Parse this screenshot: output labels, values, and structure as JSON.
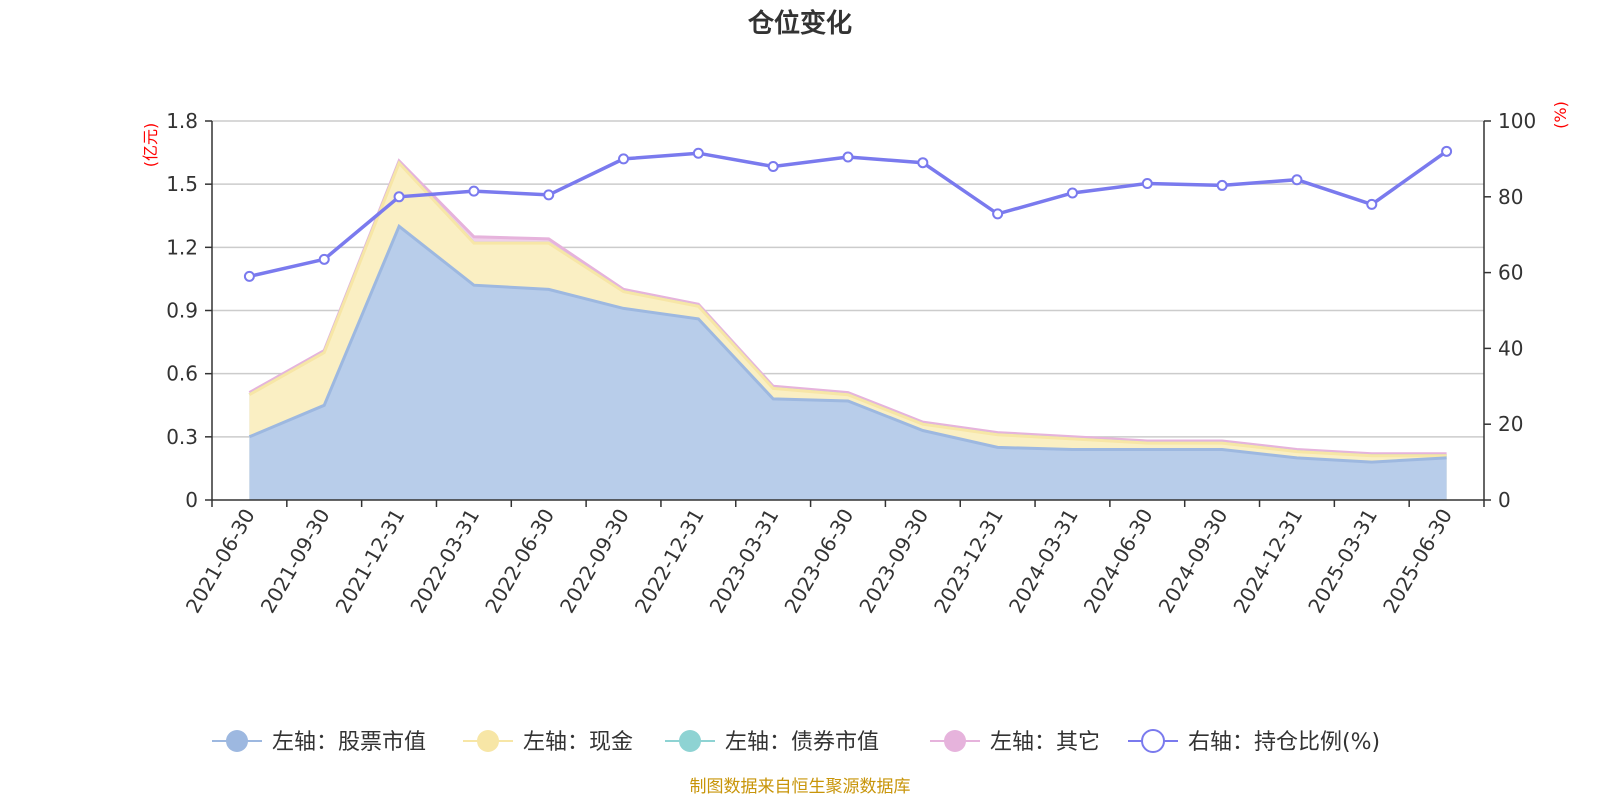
{
  "chart_data": {
    "type": "area",
    "title": "仓位变化",
    "left_unit": "(亿元)",
    "right_unit": "(%)",
    "categories": [
      "2021-06-30",
      "2021-09-30",
      "2021-12-31",
      "2022-03-31",
      "2022-06-30",
      "2022-09-30",
      "2022-12-31",
      "2023-03-31",
      "2023-06-30",
      "2023-09-30",
      "2023-12-31",
      "2024-03-31",
      "2024-06-30",
      "2024-09-30",
      "2024-12-31",
      "2025-03-31",
      "2025-06-30"
    ],
    "left_axis": {
      "min": 0,
      "max": 1.8,
      "ticks": [
        "0",
        "0.3",
        "0.6",
        "0.9",
        "1.2",
        "1.5",
        "1.8"
      ]
    },
    "right_axis": {
      "min": 0,
      "max": 100,
      "ticks": [
        "0",
        "20",
        "40",
        "60",
        "80",
        "100"
      ]
    },
    "grid": true,
    "legend_position": "bottom",
    "series": [
      {
        "name": "左轴：股票市值",
        "axis": "left",
        "stack": true,
        "color": "#9db8e0",
        "fill": "#b8cdea",
        "values": [
          0.3,
          0.45,
          1.3,
          1.02,
          1.0,
          0.91,
          0.86,
          0.48,
          0.47,
          0.33,
          0.25,
          0.24,
          0.24,
          0.24,
          0.2,
          0.18,
          0.2
        ]
      },
      {
        "name": "左轴：现金",
        "axis": "left",
        "stack": true,
        "color": "#f7e6a6",
        "fill": "#faefc3",
        "values": [
          0.2,
          0.25,
          0.3,
          0.2,
          0.22,
          0.08,
          0.06,
          0.05,
          0.03,
          0.03,
          0.06,
          0.05,
          0.03,
          0.03,
          0.03,
          0.03,
          0.01
        ]
      },
      {
        "name": "左轴：债券市值",
        "axis": "left",
        "stack": true,
        "color": "#8ed3d3",
        "fill": "#bfe6e6",
        "values": [
          0,
          0,
          0,
          0,
          0,
          0,
          0,
          0,
          0,
          0,
          0,
          0,
          0,
          0,
          0,
          0,
          0
        ]
      },
      {
        "name": "左轴：其它",
        "axis": "left",
        "stack": true,
        "color": "#e6b3dc",
        "fill": "#f0d0ea",
        "values": [
          0.01,
          0.01,
          0.01,
          0.03,
          0.02,
          0.01,
          0.01,
          0.01,
          0.01,
          0.01,
          0.01,
          0.01,
          0.01,
          0.01,
          0.01,
          0.01,
          0.01
        ]
      },
      {
        "name": "右轴：持仓比例(%)",
        "axis": "right",
        "stack": false,
        "color": "#7a7aee",
        "values": [
          59,
          63.5,
          80,
          81.5,
          80.5,
          90,
          91.5,
          88,
          90.5,
          89,
          75.5,
          81,
          83.5,
          83,
          84.5,
          78,
          92
        ]
      }
    ]
  },
  "source_text": "制图数据来自恒生聚源数据库"
}
